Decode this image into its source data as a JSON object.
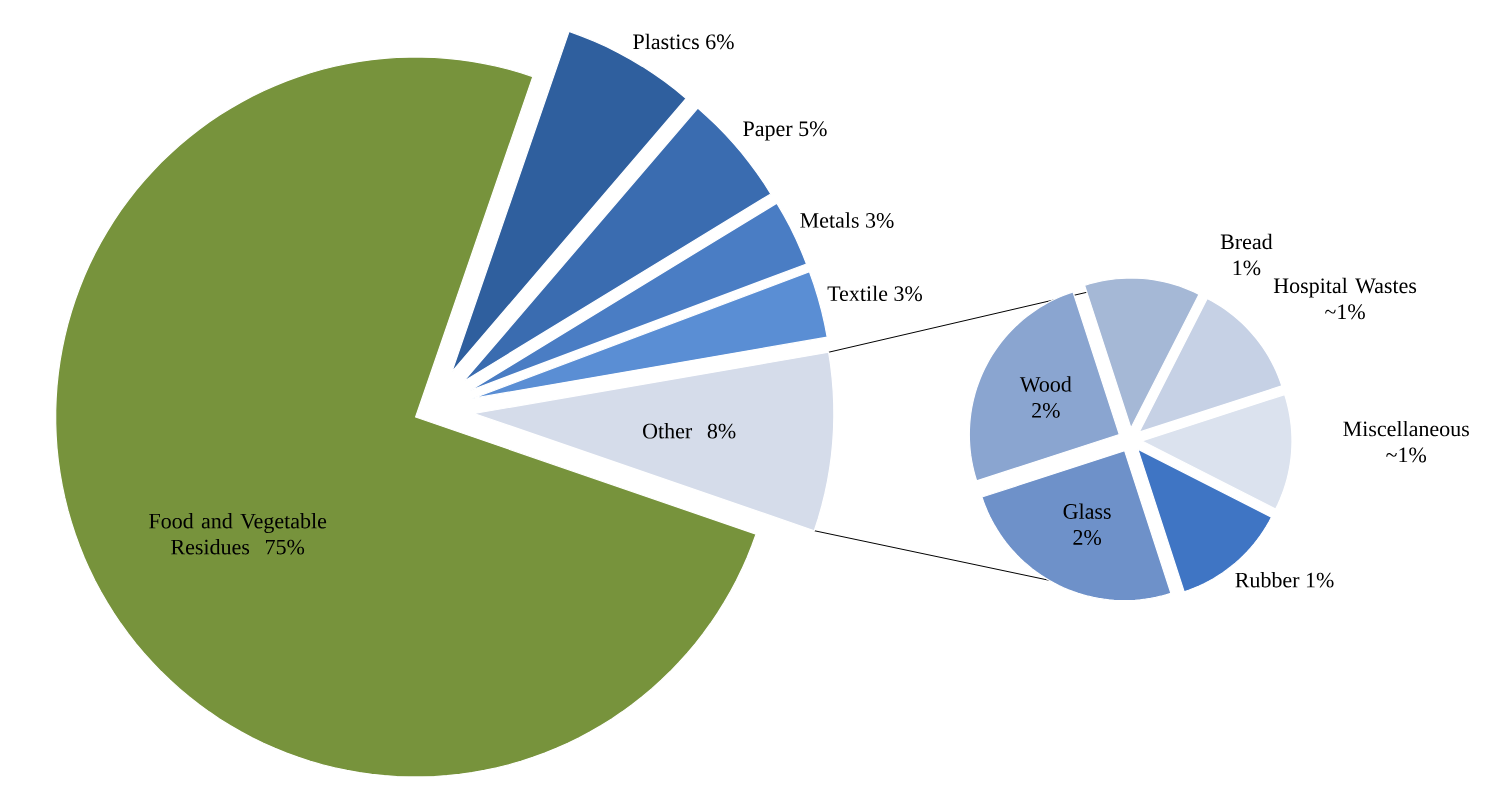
{
  "chart_data": [
    {
      "type": "pie",
      "categories": [
        "Food and Vegetable Residues",
        "Plastics",
        "Paper",
        "Metals",
        "Textile",
        "Other"
      ],
      "values": [
        75,
        6,
        5,
        3,
        3,
        8
      ],
      "colors": [
        "#77933c",
        "#2f5f9e",
        "#3a6cb0",
        "#4a7dc4",
        "#5a8ed4",
        "#d5dcea"
      ],
      "value_labels": [
        "75%",
        "6%",
        "5%",
        "3%",
        "3%",
        "8%"
      ]
    },
    {
      "type": "pie",
      "categories": [
        "Bread",
        "Hospital Wastes",
        "Miscellaneous",
        "Rubber",
        "Glass",
        "Wood"
      ],
      "values": [
        1,
        1,
        1,
        1,
        2,
        2
      ],
      "colors": [
        "#a5b8d6",
        "#c6d1e5",
        "#dbe2ee",
        "#3f75c4",
        "#6e91c9",
        "#8aa5d0"
      ],
      "value_labels": [
        "1%",
        "~1%",
        "~1%",
        "1%",
        "2%",
        "2%"
      ]
    }
  ]
}
